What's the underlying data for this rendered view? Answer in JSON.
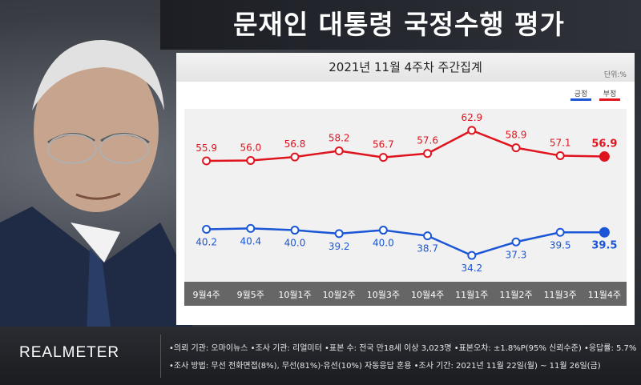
{
  "header": {
    "title": "문재인 대통령 국정수행 평가",
    "subtitle": "2021년 11월 4주차 주간집계",
    "unit": "단위:%"
  },
  "legend": {
    "positive_label": "긍정",
    "negative_label": "부정"
  },
  "colors": {
    "positive": "#1a56d6",
    "negative": "#e0141e",
    "plot_bg": "#f1f1f1",
    "xband": "#666666"
  },
  "chart_data": {
    "type": "line",
    "categories": [
      "9월4주",
      "9월5주",
      "10월1주",
      "10월2주",
      "10월3주",
      "10월4주",
      "11월1주",
      "11월2주",
      "11월3주",
      "11월4주"
    ],
    "series": [
      {
        "name": "부정",
        "values": [
          55.9,
          56.0,
          56.8,
          58.2,
          56.7,
          57.6,
          62.9,
          58.9,
          57.1,
          56.9
        ]
      },
      {
        "name": "긍정",
        "values": [
          40.2,
          40.4,
          40.0,
          39.2,
          40.0,
          38.7,
          34.2,
          37.3,
          39.5,
          39.5
        ]
      }
    ],
    "value_labels": {
      "부정": [
        "55.9",
        "56.0",
        "56.8",
        "58.2",
        "56.7",
        "57.6",
        "62.9",
        "58.9",
        "57.1",
        "56.9"
      ],
      "긍정": [
        "40.2",
        "40.4",
        "40.0",
        "39.2",
        "40.0",
        "38.7",
        "34.2",
        "37.3",
        "39.5",
        "39.5"
      ]
    },
    "title": "",
    "xlabel": "",
    "ylabel": "",
    "grid": false,
    "legend_position": "top-right"
  },
  "footer": {
    "brand": "REALMETER",
    "note1": "•의뢰 기관: 오마이뉴스 •조사 기관: 리얼미터 •표본 수: 전국 만18세 이상 3,023명 •표본오차: ±1.8%P(95% 신뢰수준) •응답률: 5.7%",
    "note2": "•조사 방법: 무선 전화면접(8%), 무선(81%)·유선(10%) 자동응답 혼용 •조사 기간: 2021년 11월 22일(월) ~ 11월 26일(금)"
  }
}
